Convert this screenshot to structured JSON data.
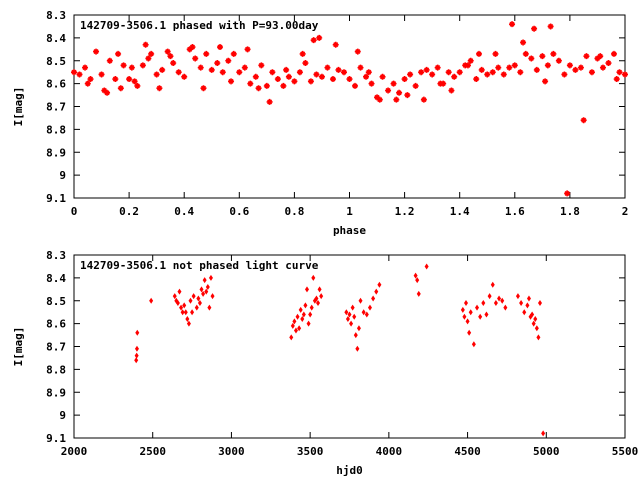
{
  "chart_data": [
    {
      "type": "scatter",
      "title": "142709-3506.1 phased with P=93.00day",
      "xlabel": "phase",
      "ylabel": "I[mag]",
      "xlim": [
        0,
        2
      ],
      "ylim": [
        9.1,
        8.3
      ],
      "y_inverted": true,
      "x_ticks": [
        0,
        0.2,
        0.4,
        0.6,
        0.8,
        1,
        1.2,
        1.4,
        1.6,
        1.8,
        2
      ],
      "x_tick_labels": [
        "0",
        "0.2",
        "0.4",
        "0.6",
        "0.8",
        "1",
        "1.2",
        "1.4",
        "1.6",
        "1.8",
        "2"
      ],
      "y_ticks": [
        8.3,
        8.4,
        8.5,
        8.6,
        8.7,
        8.8,
        8.9,
        9.0,
        9.1
      ],
      "y_tick_labels": [
        "8.3",
        "8.4",
        "8.5",
        "8.6",
        "8.7",
        "8.8",
        "8.9",
        "9",
        "9.1"
      ],
      "marker": "plus-x",
      "color": "#ff0000",
      "series": [
        {
          "x": [
            0.0,
            0.02,
            0.04,
            0.06,
            0.08,
            0.1,
            0.11,
            0.13,
            0.15,
            0.16,
            0.18,
            0.2,
            0.21,
            0.23,
            0.25,
            0.27,
            0.28,
            0.3,
            0.32,
            0.34,
            0.36,
            0.38,
            0.4,
            0.42,
            0.44,
            0.46,
            0.48,
            0.5,
            0.52,
            0.54,
            0.56,
            0.58,
            0.6,
            0.62,
            0.64,
            0.66,
            0.68,
            0.7,
            0.72,
            0.74,
            0.76,
            0.78,
            0.8,
            0.82,
            0.84,
            0.86,
            0.88,
            0.9,
            0.92,
            0.94,
            0.96,
            0.98,
            1.0,
            1.02,
            1.04,
            1.06,
            1.08,
            1.1,
            1.12,
            1.14,
            1.16,
            1.18,
            1.2,
            1.22,
            1.24,
            1.26,
            1.28,
            1.3,
            1.32,
            1.34,
            1.36,
            1.38,
            1.4,
            1.42,
            1.44,
            1.46,
            1.48,
            1.5,
            1.52,
            1.54,
            1.56,
            1.58,
            1.6,
            1.62,
            1.64,
            1.66,
            1.68,
            1.7,
            1.72,
            1.74,
            1.76,
            1.78,
            1.8,
            1.82,
            1.84,
            1.86,
            1.88,
            1.9,
            1.92,
            1.94,
            1.96,
            1.98,
            2.0,
            0.05,
            0.12,
            0.17,
            0.22,
            0.26,
            0.31,
            0.35,
            0.43,
            0.47,
            0.53,
            0.57,
            0.63,
            0.67,
            0.71,
            0.77,
            0.83,
            0.87,
            0.89,
            0.95,
            1.03,
            1.07,
            1.11,
            1.17,
            1.21,
            1.27,
            1.33,
            1.37,
            1.43,
            1.47,
            1.53,
            1.59,
            1.63,
            1.67,
            1.71,
            1.73,
            1.79,
            1.85,
            1.91,
            1.97
          ],
          "y": [
            8.55,
            8.56,
            8.53,
            8.58,
            8.46,
            8.56,
            8.63,
            8.5,
            8.58,
            8.47,
            8.52,
            8.58,
            8.53,
            8.61,
            8.52,
            8.49,
            8.47,
            8.56,
            8.54,
            8.46,
            8.51,
            8.55,
            8.57,
            8.45,
            8.49,
            8.53,
            8.47,
            8.54,
            8.51,
            8.55,
            8.5,
            8.47,
            8.55,
            8.53,
            8.6,
            8.57,
            8.52,
            8.61,
            8.55,
            8.58,
            8.61,
            8.57,
            8.59,
            8.55,
            8.51,
            8.59,
            8.56,
            8.57,
            8.53,
            8.58,
            8.54,
            8.55,
            8.58,
            8.61,
            8.53,
            8.57,
            8.6,
            8.66,
            8.57,
            8.63,
            8.6,
            8.64,
            8.58,
            8.56,
            8.61,
            8.55,
            8.54,
            8.56,
            8.53,
            8.6,
            8.55,
            8.57,
            8.55,
            8.52,
            8.5,
            8.58,
            8.54,
            8.56,
            8.55,
            8.53,
            8.56,
            8.53,
            8.52,
            8.55,
            8.47,
            8.49,
            8.54,
            8.48,
            8.52,
            8.47,
            8.5,
            8.56,
            8.52,
            8.54,
            8.53,
            8.48,
            8.55,
            8.49,
            8.53,
            8.51,
            8.47,
            8.55,
            8.56,
            8.6,
            8.64,
            8.62,
            8.59,
            8.43,
            8.62,
            8.48,
            8.44,
            8.62,
            8.44,
            8.59,
            8.45,
            8.62,
            8.68,
            8.54,
            8.47,
            8.41,
            8.4,
            8.43,
            8.46,
            8.55,
            8.67,
            8.67,
            8.65,
            8.67,
            8.6,
            8.63,
            8.52,
            8.47,
            8.47,
            8.34,
            8.42,
            8.36,
            8.59,
            8.35,
            9.08,
            8.76,
            8.48,
            8.58
          ]
        }
      ]
    },
    {
      "type": "scatter",
      "title": "142709-3506.1 not phased light curve",
      "xlabel": "hjd0",
      "ylabel": "I[mag]",
      "xlim": [
        2000,
        5500
      ],
      "ylim": [
        9.1,
        8.3
      ],
      "y_inverted": true,
      "x_ticks": [
        2000,
        2500,
        3000,
        3500,
        4000,
        4500,
        5000,
        5500
      ],
      "x_tick_labels": [
        "2000",
        "2500",
        "3000",
        "3500",
        "4000",
        "4500",
        "5000",
        "5500"
      ],
      "y_ticks": [
        8.3,
        8.4,
        8.5,
        8.6,
        8.7,
        8.8,
        8.9,
        9.0,
        9.1
      ],
      "y_tick_labels": [
        "8.3",
        "8.4",
        "8.5",
        "8.6",
        "8.7",
        "8.8",
        "8.9",
        "9",
        "9.1"
      ],
      "marker": "diamond",
      "color": "#ff0000",
      "series": [
        {
          "x": [
            2395,
            2398,
            2400,
            2402,
            2490,
            2640,
            2650,
            2660,
            2670,
            2680,
            2690,
            2700,
            2710,
            2720,
            2730,
            2740,
            2750,
            2760,
            2780,
            2790,
            2800,
            2810,
            2820,
            2830,
            2840,
            2850,
            2860,
            2870,
            2880,
            3380,
            3390,
            3400,
            3410,
            3420,
            3430,
            3440,
            3450,
            3460,
            3470,
            3480,
            3490,
            3500,
            3510,
            3520,
            3530,
            3540,
            3550,
            3560,
            3570,
            3730,
            3740,
            3750,
            3760,
            3770,
            3780,
            3790,
            3800,
            3810,
            3820,
            3840,
            3860,
            3880,
            3900,
            3920,
            3940,
            4170,
            4180,
            4190,
            4240,
            4470,
            4480,
            4490,
            4500,
            4510,
            4520,
            4540,
            4560,
            4580,
            4600,
            4620,
            4640,
            4660,
            4680,
            4700,
            4720,
            4740,
            4820,
            4840,
            4860,
            4880,
            4890,
            4900,
            4910,
            4920,
            4930,
            4940,
            4950,
            4960,
            4980
          ],
          "y": [
            8.76,
            8.74,
            8.71,
            8.64,
            8.5,
            8.48,
            8.5,
            8.51,
            8.46,
            8.53,
            8.55,
            8.52,
            8.55,
            8.58,
            8.6,
            8.5,
            8.55,
            8.48,
            8.53,
            8.49,
            8.51,
            8.45,
            8.47,
            8.41,
            8.46,
            8.44,
            8.53,
            8.4,
            8.48,
            8.66,
            8.61,
            8.59,
            8.63,
            8.57,
            8.62,
            8.54,
            8.58,
            8.56,
            8.52,
            8.45,
            8.6,
            8.56,
            8.53,
            8.4,
            8.5,
            8.49,
            8.51,
            8.45,
            8.48,
            8.55,
            8.58,
            8.56,
            8.6,
            8.53,
            8.57,
            8.65,
            8.71,
            8.62,
            8.5,
            8.55,
            8.56,
            8.53,
            8.49,
            8.46,
            8.43,
            8.39,
            8.41,
            8.47,
            8.35,
            8.54,
            8.57,
            8.51,
            8.59,
            8.64,
            8.55,
            8.69,
            8.53,
            8.57,
            8.51,
            8.56,
            8.48,
            8.43,
            8.51,
            8.49,
            8.5,
            8.53,
            8.48,
            8.51,
            8.55,
            8.52,
            8.49,
            8.57,
            8.56,
            8.6,
            8.58,
            8.62,
            8.66,
            8.51,
            9.08
          ]
        }
      ]
    }
  ]
}
